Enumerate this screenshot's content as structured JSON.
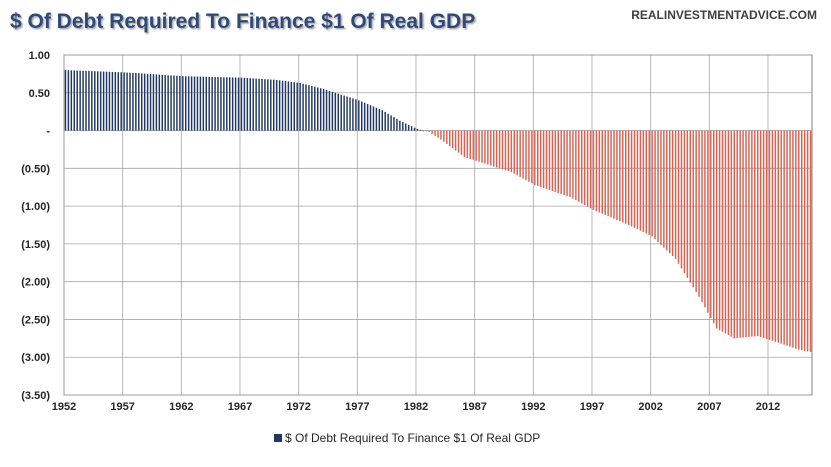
{
  "chart_data": {
    "type": "bar",
    "title": "$ Of Debt Required To Finance $1 Of Real GDP",
    "source_label": "REALINVESTMENTADVICE.COM",
    "legend_label": "$ Of Debt Required To Finance $1 Of Real GDP",
    "legend_position": "bottom",
    "grid": true,
    "xlim": [
      1952,
      2015.75
    ],
    "ylim": [
      -3.5,
      1.0
    ],
    "x_ticks": [
      1952,
      1957,
      1962,
      1967,
      1972,
      1977,
      1982,
      1987,
      1992,
      1997,
      2002,
      2007,
      2012
    ],
    "y_ticks": [
      {
        "value": 1.0,
        "label": "1.00"
      },
      {
        "value": 0.5,
        "label": "0.50"
      },
      {
        "value": 0.0,
        "label": "-"
      },
      {
        "value": -0.5,
        "label": "(0.50)"
      },
      {
        "value": -1.0,
        "label": "(1.00)"
      },
      {
        "value": -1.5,
        "label": "(1.50)"
      },
      {
        "value": -2.0,
        "label": "(2.00)"
      },
      {
        "value": -2.5,
        "label": "(2.50)"
      },
      {
        "value": -3.0,
        "label": "(3.00)"
      },
      {
        "value": -3.5,
        "label": "(3.50)"
      }
    ],
    "frequency": "quarterly",
    "series_anchor_points": [
      {
        "x": 1952.0,
        "y": 0.8
      },
      {
        "x": 1957.0,
        "y": 0.77
      },
      {
        "x": 1962.0,
        "y": 0.72
      },
      {
        "x": 1967.0,
        "y": 0.7
      },
      {
        "x": 1970.0,
        "y": 0.67
      },
      {
        "x": 1972.0,
        "y": 0.63
      },
      {
        "x": 1974.0,
        "y": 0.55
      },
      {
        "x": 1977.0,
        "y": 0.4
      },
      {
        "x": 1979.0,
        "y": 0.27
      },
      {
        "x": 1980.5,
        "y": 0.13
      },
      {
        "x": 1982.0,
        "y": 0.02
      },
      {
        "x": 1983.0,
        "y": -0.02
      },
      {
        "x": 1984.0,
        "y": -0.12
      },
      {
        "x": 1986.0,
        "y": -0.35
      },
      {
        "x": 1988.0,
        "y": -0.45
      },
      {
        "x": 1990.0,
        "y": -0.55
      },
      {
        "x": 1992.0,
        "y": -0.72
      },
      {
        "x": 1995.0,
        "y": -0.88
      },
      {
        "x": 1997.0,
        "y": -1.05
      },
      {
        "x": 2000.0,
        "y": -1.25
      },
      {
        "x": 2002.0,
        "y": -1.4
      },
      {
        "x": 2004.0,
        "y": -1.7
      },
      {
        "x": 2006.0,
        "y": -2.2
      },
      {
        "x": 2007.5,
        "y": -2.62
      },
      {
        "x": 2009.0,
        "y": -2.75
      },
      {
        "x": 2011.0,
        "y": -2.72
      },
      {
        "x": 2013.0,
        "y": -2.82
      },
      {
        "x": 2014.5,
        "y": -2.9
      },
      {
        "x": 2015.5,
        "y": -2.93
      }
    ],
    "colors": {
      "positive": "#1f3864",
      "negative": "#e06050",
      "title": "#2e4a7a",
      "grid": "#a6a6a6",
      "axis": "#595959"
    }
  }
}
